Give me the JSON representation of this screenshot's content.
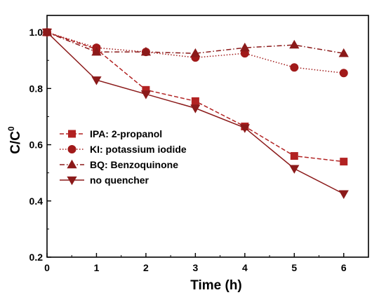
{
  "chart_data": {
    "type": "line",
    "title": "",
    "xlabel": "Time (h)",
    "ylabel_base": "C/C",
    "ylabel_sup": "0",
    "x": [
      0,
      1,
      2,
      3,
      4,
      5,
      6
    ],
    "xlim": [
      0,
      6.5
    ],
    "ylim": [
      0.2,
      1.06
    ],
    "x_ticks": [
      "0",
      "1",
      "2",
      "3",
      "4",
      "5",
      "6"
    ],
    "y_ticks": [
      "0.2",
      "0.4",
      "0.6",
      "0.8",
      "1.0"
    ],
    "y_tick_values": [
      0.2,
      0.4,
      0.6,
      0.8,
      1.0
    ],
    "grid": false,
    "legend_position": "lower-left",
    "series": [
      {
        "name": "IPA: 2-propanol",
        "marker": "square",
        "line_style": "dashed",
        "color": "#b22222",
        "values": [
          1.0,
          0.94,
          0.795,
          0.755,
          0.665,
          0.56,
          0.54
        ]
      },
      {
        "name": "KI: potassium iodide",
        "marker": "circle",
        "line_style": "dotted",
        "color": "#a11a1a",
        "values": [
          1.0,
          0.945,
          0.93,
          0.91,
          0.925,
          0.875,
          0.855
        ]
      },
      {
        "name": "BQ: Benzoquinone",
        "marker": "triangle-up",
        "line_style": "dashdot",
        "color": "#8b1a1a",
        "values": [
          1.0,
          0.93,
          0.93,
          0.925,
          0.945,
          0.955,
          0.925
        ]
      },
      {
        "name": "no quencher",
        "marker": "triangle-down",
        "line_style": "solid",
        "color": "#8b1a1a",
        "values": [
          1.0,
          0.83,
          0.78,
          0.73,
          0.66,
          0.515,
          0.425
        ]
      }
    ]
  }
}
